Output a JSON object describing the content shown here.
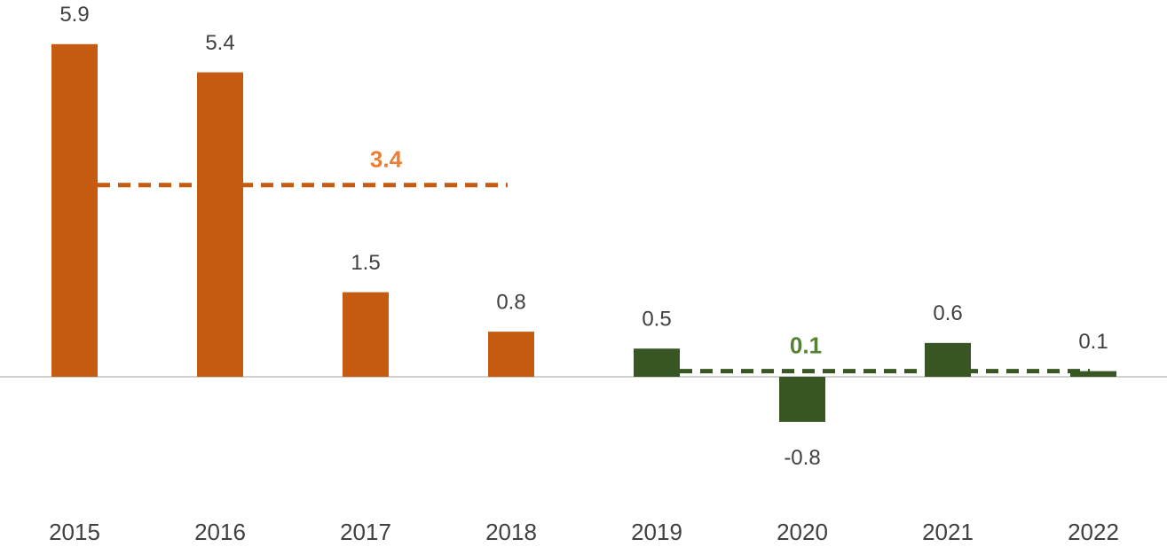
{
  "chart_data": {
    "type": "bar",
    "categories": [
      "2015",
      "2016",
      "2017",
      "2018",
      "2019",
      "2020",
      "2021",
      "2022"
    ],
    "series": [
      {
        "color": "#c55a11",
        "average": 3.4,
        "average_color": "#ed7d31",
        "values": [
          5.9,
          5.4,
          1.5,
          0.8,
          null,
          null,
          null,
          null
        ]
      },
      {
        "color": "#375623",
        "average": 0.1,
        "average_color": "#548235",
        "values": [
          null,
          null,
          null,
          null,
          0.5,
          -0.8,
          0.6,
          0.1
        ]
      }
    ],
    "ylim": [
      -2,
      6
    ]
  }
}
